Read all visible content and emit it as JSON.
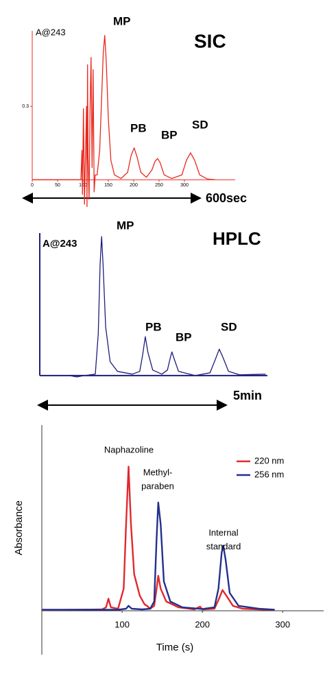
{
  "chart_data": [
    {
      "type": "line",
      "title": "SIC",
      "title_color": "#e8401c",
      "annotations": [
        "A@243",
        "MP",
        "PB",
        "BP",
        "SD",
        "600sec"
      ],
      "xlim": [
        0,
        400
      ],
      "ylim": [
        -0.12,
        0.62
      ],
      "xticks": [
        0,
        50,
        100,
        150,
        200,
        250,
        300
      ],
      "yticks": [
        0.3
      ],
      "series": [
        {
          "name": null,
          "color": "#e8281e",
          "x": [
            0,
            90,
            96,
            98,
            99,
            101,
            103,
            105,
            107,
            108,
            109,
            110,
            112,
            114,
            116,
            118,
            120,
            122,
            124,
            128,
            133,
            137,
            140,
            143,
            146,
            150,
            155,
            162,
            175,
            188,
            195,
            201,
            207,
            214,
            225,
            236,
            242,
            247,
            252,
            260,
            275,
            295,
            304,
            312,
            320,
            330,
            345,
            360
          ],
          "values": [
            0,
            0,
            0,
            0.12,
            -0.06,
            0.29,
            -0.1,
            0.1,
            0.3,
            -0.11,
            0.47,
            0.1,
            -0.08,
            0.3,
            0.5,
            0.05,
            0.45,
            -0.05,
            0.02,
            0.02,
            0.12,
            0.35,
            0.52,
            0.59,
            0.48,
            0.25,
            0.08,
            0.02,
            0.005,
            0.03,
            0.1,
            0.13,
            0.09,
            0.03,
            0.01,
            0.04,
            0.075,
            0.087,
            0.07,
            0.02,
            0.005,
            0.02,
            0.08,
            0.11,
            0.08,
            0.02,
            0.003,
            0
          ]
        }
      ]
    },
    {
      "type": "line",
      "title": "HPLC",
      "title_color": "#3a3aa8",
      "annotations": [
        "A@243",
        "MP",
        "PB",
        "BP",
        "SD",
        "5min"
      ],
      "xlim": [
        0,
        6.15
      ],
      "ylim": [
        -0.05,
        1.03
      ],
      "series": [
        {
          "name": null,
          "color": "#1c1c7a",
          "x": [
            0,
            0.8,
            1.0,
            1.2,
            1.5,
            1.58,
            1.63,
            1.67,
            1.71,
            1.78,
            1.9,
            2.1,
            2.5,
            2.7,
            2.78,
            2.85,
            2.92,
            3.05,
            3.3,
            3.45,
            3.52,
            3.57,
            3.63,
            3.75,
            4.2,
            4.6,
            4.75,
            4.85,
            4.95,
            5.1,
            5.4,
            6.1
          ],
          "values": [
            0,
            0,
            -0.01,
            0,
            0.01,
            0.3,
            0.8,
            1.0,
            0.8,
            0.35,
            0.1,
            0.03,
            0.01,
            0.03,
            0.15,
            0.28,
            0.17,
            0.04,
            0.01,
            0.04,
            0.12,
            0.17,
            0.12,
            0.03,
            0,
            0.02,
            0.12,
            0.19,
            0.13,
            0.03,
            0.005,
            0.01
          ]
        }
      ]
    },
    {
      "type": "line",
      "x_label": "Time (s)",
      "y_label": "Absorbance",
      "annotations": [
        [
          "Naphazoline"
        ],
        [
          "Methyl-",
          "paraben"
        ],
        [
          "Internal",
          "standard"
        ]
      ],
      "xlim": [
        0,
        351
      ],
      "ylim": [
        -0.31,
        1.29
      ],
      "xticks": [
        100,
        200,
        300
      ],
      "legend": "top-right",
      "series": [
        {
          "name": "220 nm",
          "color": "#e0282e",
          "x": [
            0,
            75,
            80,
            83,
            86,
            95,
            102,
            105,
            108,
            111,
            115,
            122,
            128,
            131,
            135,
            140,
            143,
            145,
            148,
            155,
            170,
            190,
            197,
            200,
            215,
            220,
            225,
            230,
            238,
            250,
            270,
            290
          ],
          "values": [
            0,
            0.005,
            0.02,
            0.08,
            0.02,
            0.01,
            0.15,
            0.6,
            1.0,
            0.6,
            0.25,
            0.1,
            0.04,
            0.03,
            0.01,
            0.03,
            0.15,
            0.24,
            0.15,
            0.06,
            0.02,
            0.005,
            0.025,
            0.005,
            0.01,
            0.07,
            0.14,
            0.1,
            0.03,
            0.01,
            0.005,
            0
          ]
        },
        {
          "name": "256 nm",
          "color": "#22308c",
          "x": [
            0,
            95,
            105,
            108,
            112,
            125,
            135,
            140,
            143,
            145,
            148,
            152,
            160,
            175,
            200,
            215,
            220,
            224,
            226,
            229,
            234,
            245,
            270,
            290
          ],
          "values": [
            0.003,
            0.003,
            0.01,
            0.03,
            0.01,
            0.005,
            0.01,
            0.06,
            0.5,
            0.75,
            0.6,
            0.2,
            0.06,
            0.02,
            0.008,
            0.02,
            0.15,
            0.4,
            0.45,
            0.35,
            0.12,
            0.03,
            0.01,
            0.003
          ]
        }
      ]
    }
  ]
}
